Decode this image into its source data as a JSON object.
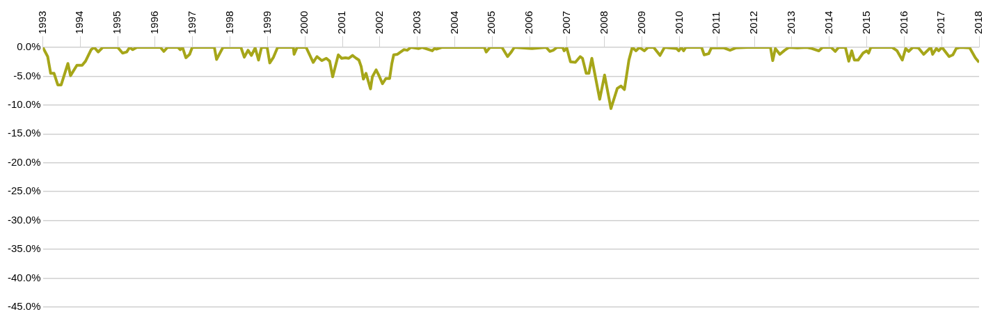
{
  "chart_data": {
    "type": "line",
    "xlim": [
      1993,
      2018
    ],
    "ylim": [
      -45,
      0
    ],
    "xticks": [
      1993,
      1994,
      1995,
      1996,
      1997,
      1998,
      1999,
      2000,
      2001,
      2002,
      2003,
      2004,
      2005,
      2006,
      2007,
      2008,
      2009,
      2010,
      2011,
      2012,
      2013,
      2014,
      2015,
      2016,
      2017,
      2018
    ],
    "yticks": [
      {
        "value": 0,
        "label": "0.0%"
      },
      {
        "value": -5,
        "label": "-5.0%"
      },
      {
        "value": -10,
        "label": "-10.0%"
      },
      {
        "value": -15,
        "label": "-15.0%"
      },
      {
        "value": -20,
        "label": "-20.0%"
      },
      {
        "value": -25,
        "label": "-25.0%"
      },
      {
        "value": -30,
        "label": "-30.0%"
      },
      {
        "value": -35,
        "label": "-35.0%"
      },
      {
        "value": -40,
        "label": "-40.0%"
      },
      {
        "value": -45,
        "label": "-45.0%"
      }
    ],
    "grid": "y",
    "legend": false,
    "series": [
      {
        "color": "#a6a619",
        "x": [
          1993.0,
          1993.13,
          1993.21,
          1993.3,
          1993.4,
          1993.49,
          1993.67,
          1993.74,
          1993.91,
          1994.05,
          1994.14,
          1994.29,
          1994.37,
          1994.48,
          1994.6,
          1995.0,
          1995.13,
          1995.24,
          1995.32,
          1995.4,
          1995.51,
          1996.14,
          1996.23,
          1996.33,
          1996.61,
          1996.67,
          1996.73,
          1996.82,
          1996.92,
          1996.99,
          1997.58,
          1997.64,
          1997.81,
          1998.29,
          1998.38,
          1998.48,
          1998.57,
          1998.67,
          1998.76,
          1998.84,
          1998.99,
          1999.06,
          1999.16,
          1999.27,
          1999.69,
          1999.71,
          1999.79,
          2000.03,
          2000.22,
          2000.32,
          2000.45,
          2000.57,
          2000.66,
          2000.74,
          2000.89,
          2000.98,
          2001.08,
          2001.17,
          2001.27,
          2001.37,
          2001.44,
          2001.5,
          2001.56,
          2001.63,
          2001.75,
          2001.8,
          2001.9,
          2001.97,
          2002.07,
          2002.16,
          2002.26,
          2002.32,
          2002.37,
          2002.47,
          2002.64,
          2002.73,
          2002.83,
          2003.04,
          2003.13,
          2003.4,
          2003.46,
          2003.51,
          2003.65,
          2004.79,
          2004.84,
          2004.94,
          2005.26,
          2005.41,
          2005.51,
          2005.59,
          2006.06,
          2006.44,
          2006.54,
          2006.63,
          2006.73,
          2006.88,
          2006.92,
          2006.99,
          2007.09,
          2007.22,
          2007.35,
          2007.41,
          2007.51,
          2007.58,
          2007.66,
          2007.87,
          2008.0,
          2008.17,
          2008.34,
          2008.44,
          2008.53,
          2008.65,
          2008.74,
          2008.84,
          2008.93,
          2009.06,
          2009.16,
          2009.31,
          2009.48,
          2009.6,
          2009.92,
          2009.98,
          2010.05,
          2010.11,
          2010.17,
          2010.59,
          2010.66,
          2010.78,
          2010.85,
          2011.19,
          2011.35,
          2011.5,
          2011.82,
          2012.43,
          2012.49,
          2012.56,
          2012.68,
          2012.81,
          2012.92,
          2013.15,
          2013.4,
          2013.53,
          2013.72,
          2013.82,
          2014.05,
          2014.16,
          2014.25,
          2014.43,
          2014.52,
          2014.6,
          2014.67,
          2014.77,
          2014.9,
          2015.0,
          2015.05,
          2015.11,
          2015.68,
          2015.81,
          2015.95,
          2016.04,
          2016.12,
          2016.23,
          2016.38,
          2016.52,
          2016.71,
          2016.76,
          2016.86,
          2016.92,
          2017.01,
          2017.2,
          2017.3,
          2017.39,
          2017.49,
          2017.75,
          2017.9,
          2018.0
        ],
        "values": [
          0,
          -1.6,
          -4.5,
          -4.5,
          -6.5,
          -6.5,
          -2.8,
          -4.9,
          -3.1,
          -3.1,
          -2.4,
          -0.4,
          0,
          -0.8,
          0,
          0,
          -1.0,
          -0.8,
          0,
          -0.4,
          0,
          0,
          -0.7,
          0,
          0,
          -0.4,
          0,
          -1.8,
          -1.2,
          0,
          0,
          -2.1,
          0,
          0,
          -1.7,
          -0.5,
          -1.4,
          -0.1,
          -2.2,
          0,
          0,
          -2.7,
          -1.7,
          0,
          0,
          -1.2,
          0,
          0,
          -2.6,
          -1.6,
          -2.3,
          -1.9,
          -2.4,
          -5.1,
          -1.3,
          -1.9,
          -1.8,
          -1.9,
          -1.4,
          -1.9,
          -2.2,
          -3.3,
          -5.5,
          -4.5,
          -7.2,
          -5.1,
          -3.9,
          -4.8,
          -6.3,
          -5.4,
          -5.4,
          -2.8,
          -1.3,
          -1.2,
          -0.4,
          -0.5,
          0,
          -0.2,
          0,
          -0.6,
          -0.2,
          -0.3,
          0,
          0,
          -0.8,
          0,
          0,
          -1.6,
          -0.8,
          0,
          -0.2,
          0,
          -0.7,
          -0.5,
          0,
          0,
          -0.6,
          -0.1,
          -2.5,
          -2.6,
          -1.6,
          -1.9,
          -4.5,
          -4.5,
          -1.9,
          -9.0,
          -4.8,
          -10.6,
          -7.1,
          -6.7,
          -7.3,
          -2.2,
          0,
          -0.6,
          0,
          -0.6,
          0,
          0,
          -1.4,
          0,
          -0.2,
          -0.6,
          0,
          -0.6,
          0,
          0,
          -1.3,
          -1.1,
          -0.1,
          -0.1,
          -0.5,
          -0.1,
          0,
          0,
          -2.3,
          -0.2,
          -1.2,
          -0.5,
          0,
          -0.1,
          0,
          -0.2,
          -0.6,
          0,
          0,
          -0.7,
          0,
          0,
          -2.4,
          -0.6,
          -2.2,
          -2.2,
          -1.0,
          -0.6,
          -1.0,
          0,
          0,
          -0.6,
          -2.2,
          -0.2,
          -0.7,
          0,
          -0.1,
          -1.2,
          0,
          -1.2,
          -0.2,
          -0.6,
          0,
          -1.6,
          -1.3,
          -0.2,
          0,
          -0.1,
          -1.8,
          -2.6
        ]
      }
    ]
  }
}
